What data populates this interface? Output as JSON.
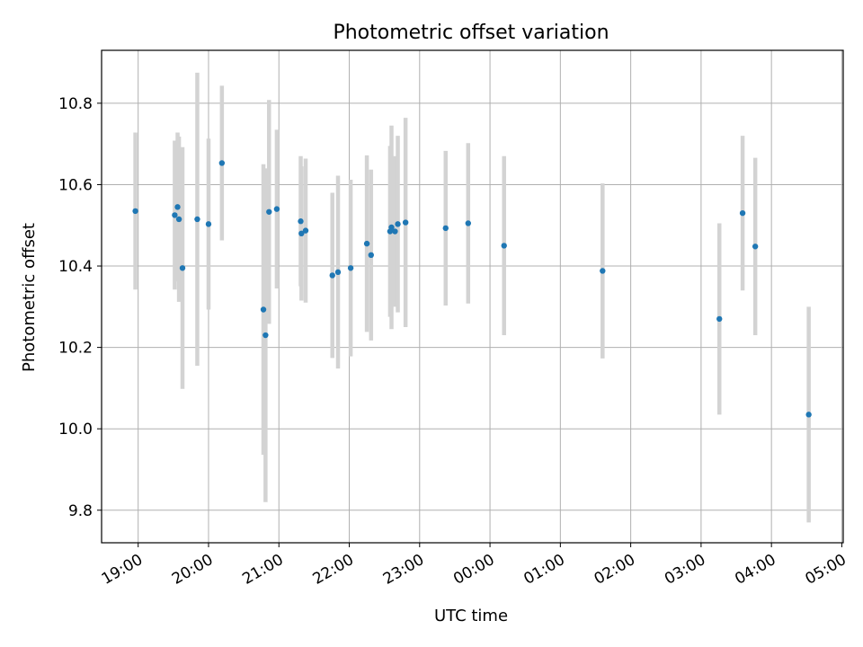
{
  "chart_data": {
    "type": "scatter",
    "title": "Photometric offset variation",
    "xlabel": "UTC time",
    "ylabel": "Photometric offset",
    "x_unit": "hours",
    "xlim": [
      18.48,
      29.02
    ],
    "ylim": [
      9.72,
      10.93
    ],
    "x_ticks": [
      {
        "value": 19,
        "label": "19:00"
      },
      {
        "value": 20,
        "label": "20:00"
      },
      {
        "value": 21,
        "label": "21:00"
      },
      {
        "value": 22,
        "label": "22:00"
      },
      {
        "value": 23,
        "label": "23:00"
      },
      {
        "value": 24,
        "label": "00:00"
      },
      {
        "value": 25,
        "label": "01:00"
      },
      {
        "value": 26,
        "label": "02:00"
      },
      {
        "value": 27,
        "label": "03:00"
      },
      {
        "value": 28,
        "label": "04:00"
      },
      {
        "value": 29,
        "label": "05:00"
      }
    ],
    "y_ticks": [
      {
        "value": 9.8,
        "label": "9.8"
      },
      {
        "value": 10.0,
        "label": "10.0"
      },
      {
        "value": 10.2,
        "label": "10.2"
      },
      {
        "value": 10.4,
        "label": "10.4"
      },
      {
        "value": 10.6,
        "label": "10.6"
      },
      {
        "value": 10.8,
        "label": "10.8"
      }
    ],
    "grid": true,
    "marker_color": "#1f77b4",
    "errorbar_color": "#d3d3d3",
    "points": [
      {
        "x": 18.96,
        "y": 10.535,
        "err": 0.193
      },
      {
        "x": 19.52,
        "y": 10.525,
        "err": 0.183
      },
      {
        "x": 19.56,
        "y": 10.545,
        "err": 0.183
      },
      {
        "x": 19.58,
        "y": 10.515,
        "err": 0.203
      },
      {
        "x": 19.63,
        "y": 10.395,
        "err": 0.297
      },
      {
        "x": 19.84,
        "y": 10.515,
        "err": 0.36
      },
      {
        "x": 20.0,
        "y": 10.503,
        "err": 0.21
      },
      {
        "x": 20.19,
        "y": 10.653,
        "err": 0.19
      },
      {
        "x": 20.78,
        "y": 10.293,
        "err": 0.357
      },
      {
        "x": 20.81,
        "y": 10.23,
        "err": 0.41
      },
      {
        "x": 20.86,
        "y": 10.533,
        "err": 0.275
      },
      {
        "x": 20.97,
        "y": 10.54,
        "err": 0.195
      },
      {
        "x": 21.31,
        "y": 10.51,
        "err": 0.16
      },
      {
        "x": 21.32,
        "y": 10.48,
        "err": 0.165
      },
      {
        "x": 21.38,
        "y": 10.487,
        "err": 0.177
      },
      {
        "x": 21.76,
        "y": 10.377,
        "err": 0.203
      },
      {
        "x": 21.84,
        "y": 10.385,
        "err": 0.237
      },
      {
        "x": 22.02,
        "y": 10.395,
        "err": 0.217
      },
      {
        "x": 22.25,
        "y": 10.455,
        "err": 0.217
      },
      {
        "x": 22.31,
        "y": 10.427,
        "err": 0.21
      },
      {
        "x": 22.58,
        "y": 10.485,
        "err": 0.21
      },
      {
        "x": 22.6,
        "y": 10.495,
        "err": 0.25
      },
      {
        "x": 22.65,
        "y": 10.485,
        "err": 0.185
      },
      {
        "x": 22.69,
        "y": 10.503,
        "err": 0.217
      },
      {
        "x": 22.8,
        "y": 10.507,
        "err": 0.257
      },
      {
        "x": 23.37,
        "y": 10.493,
        "err": 0.19
      },
      {
        "x": 23.69,
        "y": 10.505,
        "err": 0.197
      },
      {
        "x": 24.2,
        "y": 10.45,
        "err": 0.22
      },
      {
        "x": 25.6,
        "y": 10.388,
        "err": 0.215
      },
      {
        "x": 27.26,
        "y": 10.27,
        "err": 0.235
      },
      {
        "x": 27.59,
        "y": 10.53,
        "err": 0.19
      },
      {
        "x": 27.77,
        "y": 10.448,
        "err": 0.218
      },
      {
        "x": 28.53,
        "y": 10.035,
        "err": 0.265
      }
    ]
  }
}
